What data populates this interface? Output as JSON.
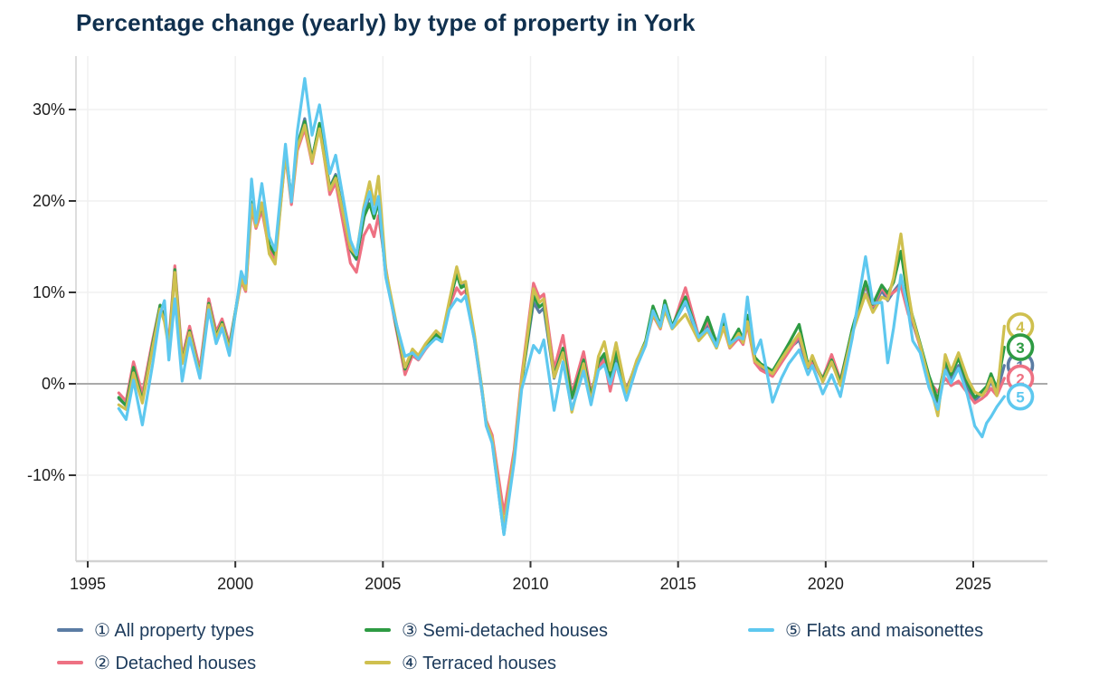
{
  "title": "Percentage change (yearly) by type of property in York",
  "colors": {
    "title_text": "#10304e",
    "legend_text": "#1c3a5b",
    "grid": "#f0f0f0",
    "zero_line": "#aaaaaa",
    "spine": "#d2d2d2",
    "tick_mark": "#333333",
    "tick_label": "#1c1c1c",
    "marker_fill": "#ffffff"
  },
  "legend": {
    "items": [
      {
        "symbol": "①",
        "name": "All property types"
      },
      {
        "symbol": "②",
        "name": "Detached houses"
      },
      {
        "symbol": "③",
        "name": "Semi-detached houses"
      },
      {
        "symbol": "④",
        "name": "Terraced houses"
      },
      {
        "symbol": "⑤",
        "name": "Flats and maisonettes"
      }
    ]
  },
  "chart_data": {
    "type": "line",
    "title": "Percentage change (yearly) by type of property in York",
    "xlabel": "",
    "ylabel": "",
    "grid": true,
    "legend_position": "bottom",
    "x_ticks": [
      1995,
      2000,
      2005,
      2010,
      2015,
      2020,
      2025
    ],
    "y_ticks": [
      {
        "value": 30,
        "label": "30%"
      },
      {
        "value": 20,
        "label": "20%"
      },
      {
        "value": 10,
        "label": "10%"
      },
      {
        "value": 0,
        "label": "0%"
      },
      {
        "value": -10,
        "label": "-10%"
      }
    ],
    "ylim": [
      -19.5,
      35.8
    ],
    "xlim": [
      1994.6,
      2027.5
    ],
    "zero_line": true,
    "x": [
      1996.05,
      1996.3,
      1996.55,
      1996.85,
      1997.2,
      1997.45,
      1997.6,
      1997.75,
      1997.95,
      1998.2,
      1998.45,
      1998.8,
      1999.1,
      1999.35,
      1999.55,
      1999.8,
      2000.2,
      2000.35,
      2000.55,
      2000.7,
      2000.9,
      2001.15,
      2001.35,
      2001.7,
      2001.9,
      2002.1,
      2002.35,
      2002.6,
      2002.85,
      2003.2,
      2003.4,
      2003.9,
      2004.1,
      2004.35,
      2004.55,
      2004.7,
      2004.85,
      2005.1,
      2005.35,
      2005.75,
      2006.0,
      2006.2,
      2006.45,
      2006.8,
      2007.0,
      2007.25,
      2007.5,
      2007.65,
      2007.8,
      2008.1,
      2008.35,
      2008.5,
      2008.7,
      2009.1,
      2009.45,
      2009.7,
      2010.1,
      2010.3,
      2010.45,
      2010.8,
      2011.1,
      2011.4,
      2011.8,
      2012.05,
      2012.3,
      2012.5,
      2012.7,
      2012.9,
      2013.25,
      2013.6,
      2013.9,
      2014.15,
      2014.4,
      2014.55,
      2014.8,
      2015.25,
      2015.7,
      2016.0,
      2016.3,
      2016.55,
      2016.75,
      2017.05,
      2017.2,
      2017.35,
      2017.6,
      2017.8,
      2018.2,
      2018.5,
      2018.75,
      2019.1,
      2019.4,
      2019.55,
      2019.9,
      2020.2,
      2020.5,
      2020.9,
      2021.35,
      2021.6,
      2021.9,
      2022.1,
      2022.3,
      2022.55,
      2022.8,
      2022.95,
      2023.2,
      2023.5,
      2023.8,
      2024.05,
      2024.25,
      2024.5,
      2024.8,
      2025.05,
      2025.3,
      2025.45,
      2025.6,
      2025.8,
      2026.05
    ],
    "series": [
      {
        "id": 1,
        "symbol": "①",
        "marker_number": "1",
        "name": "All property types",
        "color": "#5b7ca4",
        "end_value": 2.0,
        "values": [
          -1.6,
          -2.4,
          1.6,
          -1.6,
          4.2,
          8.3,
          7.0,
          4.2,
          12.3,
          2.6,
          5.9,
          1.2,
          8.9,
          5.3,
          6.8,
          4.0,
          11.6,
          10.4,
          19.8,
          17.4,
          19.4,
          15.0,
          14.0,
          25.5,
          20.1,
          26.0,
          29.0,
          24.6,
          28.4,
          21.5,
          22.9,
          14.6,
          13.6,
          18.0,
          20.9,
          18.6,
          20.3,
          12.0,
          8.0,
          1.6,
          3.6,
          2.9,
          4.2,
          5.5,
          5.0,
          8.9,
          12.0,
          10.6,
          10.9,
          5.2,
          -0.5,
          -4.3,
          -6.2,
          -16.3,
          -8.0,
          0.2,
          8.9,
          7.8,
          8.3,
          0.6,
          3.6,
          -1.6,
          2.5,
          -1.5,
          2.2,
          3.1,
          0.6,
          2.9,
          -0.9,
          2.4,
          4.6,
          7.8,
          6.2,
          8.4,
          6.2,
          8.9,
          4.9,
          6.3,
          4.3,
          6.8,
          4.2,
          5.3,
          4.6,
          7.0,
          2.6,
          1.8,
          1.0,
          2.6,
          3.8,
          4.8,
          1.7,
          2.6,
          0.3,
          2.3,
          0.1,
          5.7,
          10.8,
          8.2,
          10.2,
          9.1,
          10.1,
          11.1,
          8.1,
          6.6,
          4.1,
          0.6,
          -2.0,
          1.8,
          0.6,
          2.0,
          -0.4,
          -1.8,
          -1.1,
          -0.7,
          0.2,
          -1.0,
          2.0
        ]
      },
      {
        "id": 2,
        "symbol": "②",
        "marker_number": "2",
        "name": "Detached houses",
        "color": "#ee7183",
        "end_value": 0.6,
        "values": [
          -1.0,
          -1.9,
          2.4,
          -1.1,
          4.8,
          8.6,
          7.4,
          4.6,
          12.9,
          2.9,
          6.3,
          1.6,
          9.3,
          5.7,
          7.1,
          4.4,
          11.2,
          10.1,
          19.2,
          17.0,
          19.0,
          14.6,
          13.6,
          25.0,
          19.6,
          25.5,
          27.9,
          24.1,
          28.2,
          20.7,
          22.0,
          13.2,
          12.2,
          16.2,
          17.4,
          16.1,
          18.4,
          12.6,
          7.7,
          1.0,
          3.1,
          2.6,
          3.8,
          5.2,
          4.7,
          8.5,
          10.5,
          9.8,
          10.2,
          4.8,
          -0.8,
          -4.0,
          -5.6,
          -14.2,
          -7.2,
          0.8,
          11.0,
          9.4,
          9.8,
          1.6,
          5.3,
          -1.1,
          3.5,
          -1.0,
          1.8,
          2.6,
          -0.8,
          2.1,
          -0.5,
          2.2,
          4.4,
          7.5,
          6.0,
          8.2,
          6.1,
          10.5,
          5.2,
          6.8,
          4.6,
          6.1,
          3.9,
          5.0,
          4.3,
          6.5,
          2.3,
          1.5,
          0.8,
          2.3,
          3.5,
          5.2,
          1.9,
          2.4,
          0.6,
          3.2,
          0.4,
          5.9,
          11.0,
          8.5,
          10.5,
          9.6,
          10.0,
          10.7,
          7.6,
          6.9,
          4.0,
          0.3,
          -0.9,
          0.6,
          -0.2,
          0.3,
          -1.0,
          -2.1,
          -1.6,
          -1.2,
          -0.5,
          -1.3,
          0.6
        ]
      },
      {
        "id": 3,
        "symbol": "③",
        "marker_number": "3",
        "name": "Semi-detached houses",
        "color": "#2e9b43",
        "end_value": 4.0,
        "values": [
          -1.5,
          -2.4,
          1.8,
          -1.9,
          4.4,
          8.6,
          7.1,
          4.1,
          12.5,
          2.4,
          5.8,
          1.0,
          8.8,
          5.2,
          6.7,
          3.9,
          11.8,
          10.6,
          19.9,
          17.4,
          19.5,
          15.2,
          14.1,
          25.6,
          20.2,
          26.1,
          28.7,
          24.5,
          28.5,
          21.4,
          22.7,
          14.7,
          13.7,
          18.2,
          19.7,
          18.1,
          19.9,
          11.8,
          7.9,
          1.6,
          3.5,
          2.8,
          4.1,
          5.4,
          4.9,
          8.9,
          12.0,
          10.5,
          10.8,
          5.1,
          -0.6,
          -4.4,
          -6.3,
          -16.4,
          -8.1,
          0.1,
          9.6,
          8.4,
          8.8,
          0.9,
          3.9,
          -1.5,
          2.6,
          -1.4,
          2.4,
          3.3,
          0.8,
          3.5,
          -0.8,
          2.5,
          4.7,
          8.5,
          6.4,
          9.1,
          6.3,
          9.5,
          5.0,
          7.3,
          4.5,
          6.5,
          4.3,
          6.0,
          4.8,
          7.5,
          2.9,
          2.2,
          1.4,
          3.0,
          4.4,
          6.5,
          2.1,
          2.8,
          0.5,
          2.6,
          0.2,
          6.0,
          11.2,
          8.7,
          10.8,
          9.9,
          11.1,
          14.5,
          9.1,
          7.3,
          4.4,
          0.9,
          -1.8,
          2.5,
          1.0,
          2.8,
          0.1,
          -1.5,
          -0.8,
          -0.3,
          1.1,
          -0.5,
          4.0
        ]
      },
      {
        "id": 4,
        "symbol": "④",
        "marker_number": "4",
        "name": "Terraced houses",
        "color": "#cfc04f",
        "end_value": 6.3,
        "values": [
          -2.3,
          -2.8,
          1.2,
          -2.1,
          4.0,
          8.2,
          6.8,
          3.9,
          12.2,
          2.2,
          5.6,
          0.9,
          8.6,
          5.0,
          6.5,
          3.7,
          11.5,
          10.3,
          19.6,
          17.2,
          19.8,
          14.2,
          13.1,
          25.2,
          19.9,
          25.8,
          28.3,
          24.3,
          27.9,
          21.2,
          22.5,
          14.8,
          14.1,
          19.3,
          22.1,
          19.6,
          22.7,
          12.4,
          8.3,
          1.8,
          3.8,
          3.1,
          4.4,
          5.8,
          5.2,
          9.1,
          12.8,
          11.0,
          11.2,
          5.4,
          -0.4,
          -4.2,
          -6.0,
          -15.6,
          -7.8,
          0.4,
          10.4,
          8.9,
          9.3,
          0.7,
          3.4,
          -3.1,
          2.2,
          -2.0,
          3.0,
          4.6,
          1.5,
          4.5,
          -1.0,
          2.6,
          4.5,
          7.6,
          6.1,
          8.0,
          6.0,
          7.6,
          4.7,
          5.8,
          3.9,
          6.2,
          4.0,
          5.5,
          4.5,
          6.8,
          2.5,
          2.0,
          1.1,
          2.7,
          3.9,
          5.5,
          1.8,
          3.1,
          0.2,
          2.4,
          -0.2,
          5.5,
          9.8,
          7.8,
          9.5,
          9.2,
          11.6,
          16.4,
          10.0,
          7.1,
          4.2,
          0.4,
          -3.5,
          3.2,
          1.4,
          3.4,
          0.6,
          -0.9,
          -1.3,
          -0.6,
          0.6,
          -1.3,
          6.3
        ]
      },
      {
        "id": 5,
        "symbol": "⑤",
        "marker_number": "5",
        "name": "Flats and maisonettes",
        "color": "#5ec8ef",
        "end_value": -1.4,
        "values": [
          -2.7,
          -3.9,
          0.4,
          -4.5,
          2.2,
          7.6,
          9.1,
          2.6,
          9.3,
          0.3,
          5.0,
          0.6,
          8.1,
          4.4,
          6.1,
          3.1,
          12.3,
          11.0,
          22.4,
          17.6,
          21.9,
          16.1,
          14.6,
          26.2,
          19.9,
          27.6,
          33.4,
          27.2,
          30.5,
          23.0,
          25.0,
          15.7,
          14.1,
          19.0,
          21.0,
          18.6,
          20.5,
          11.6,
          7.8,
          3.0,
          3.4,
          2.7,
          3.9,
          5.0,
          4.6,
          8.1,
          9.3,
          9.0,
          9.6,
          4.8,
          -0.7,
          -4.6,
          -6.5,
          -16.5,
          -8.5,
          -0.6,
          4.2,
          3.4,
          4.8,
          -2.9,
          2.4,
          -2.8,
          1.4,
          -2.3,
          1.5,
          2.1,
          0.0,
          2.2,
          -1.8,
          1.9,
          4.2,
          8.0,
          6.3,
          8.6,
          6.1,
          9.0,
          5.1,
          6.0,
          4.1,
          7.6,
          4.4,
          5.1,
          4.9,
          9.5,
          3.3,
          4.8,
          -2.0,
          0.6,
          2.2,
          3.7,
          1.0,
          2.0,
          -1.1,
          1.0,
          -1.4,
          5.0,
          13.9,
          8.8,
          8.9,
          2.3,
          6.1,
          11.9,
          7.9,
          4.7,
          3.4,
          -0.4,
          -2.8,
          1.5,
          0.1,
          1.7,
          -1.2,
          -4.6,
          -5.8,
          -4.3,
          -3.6,
          -2.5,
          -1.4
        ]
      }
    ]
  }
}
